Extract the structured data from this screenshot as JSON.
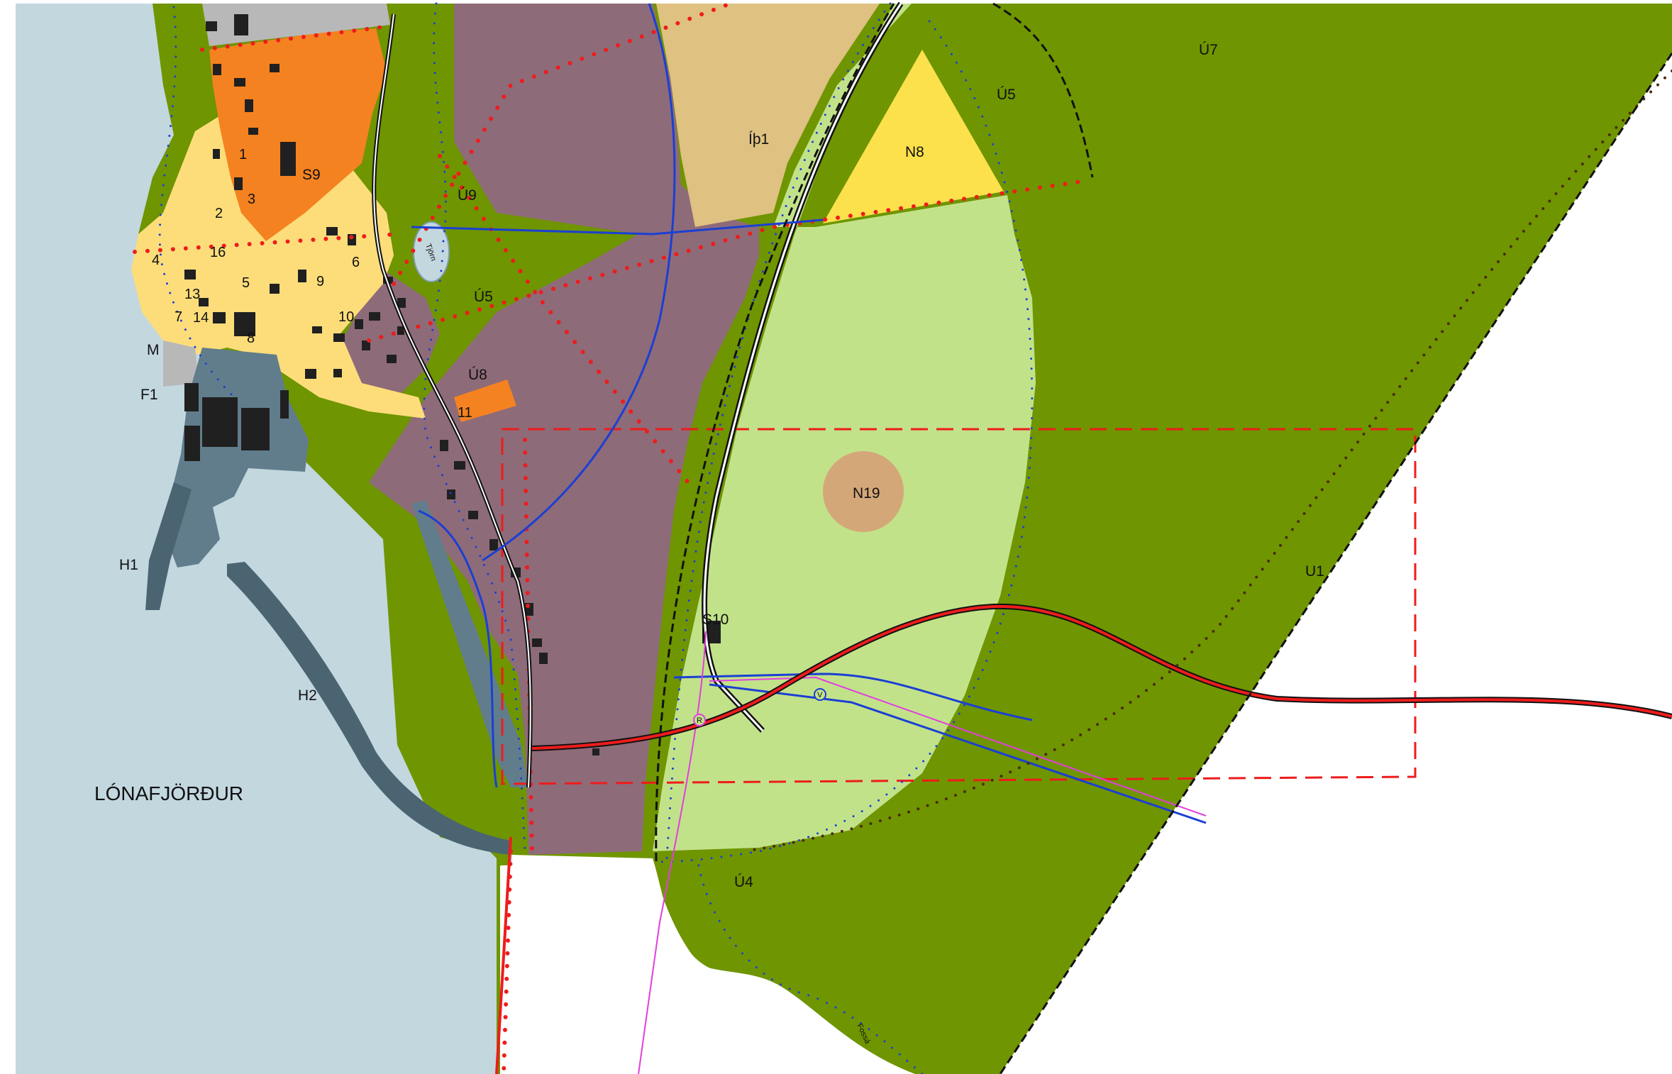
{
  "map": {
    "place_name": "LÓNAFJÖRÐUR",
    "zones": [
      {
        "code": "Ú7"
      },
      {
        "code": "Ú5"
      },
      {
        "code": "Ú5"
      },
      {
        "code": "Ú9"
      },
      {
        "code": "Ú8"
      },
      {
        "code": "Íþ1"
      },
      {
        "code": "N8"
      },
      {
        "code": "N19"
      },
      {
        "code": "S9"
      },
      {
        "code": "S10"
      },
      {
        "code": "U1"
      },
      {
        "code": "Ú4"
      },
      {
        "code": "H1"
      },
      {
        "code": "H2"
      },
      {
        "code": "F1"
      },
      {
        "code": "M"
      }
    ],
    "lot_numbers": [
      "1",
      "3",
      "2",
      "16",
      "4",
      "13",
      "5",
      "6",
      "9",
      "14",
      "8",
      "10",
      "7",
      "11"
    ],
    "line_labels": {
      "road_r": "R",
      "road_v": "V"
    },
    "small_labels": {
      "pond": "Tjörn",
      "stream": "Fossá"
    },
    "colors": {
      "water": "#c3d7df",
      "open_area": "#6f9500",
      "light_green": "#c2e28a",
      "residential": "#8e6b79",
      "yellow_zone": "#fddd7a",
      "orange_zone": "#f58220",
      "sport_tan": "#dfc181",
      "n8_yellow": "#fce14c",
      "n19_circle": "#d4a778",
      "harbour": "#617d8c",
      "red_line": "#ee1c1c",
      "blue_dot": "#1b3fd4"
    }
  }
}
